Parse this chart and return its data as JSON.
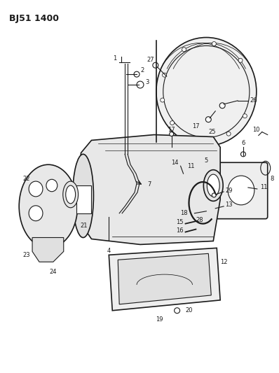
{
  "title": "BJ51 1400",
  "bg_color": "#ffffff",
  "line_color": "#1a1a1a",
  "fig_width": 3.98,
  "fig_height": 5.33,
  "dpi": 100
}
